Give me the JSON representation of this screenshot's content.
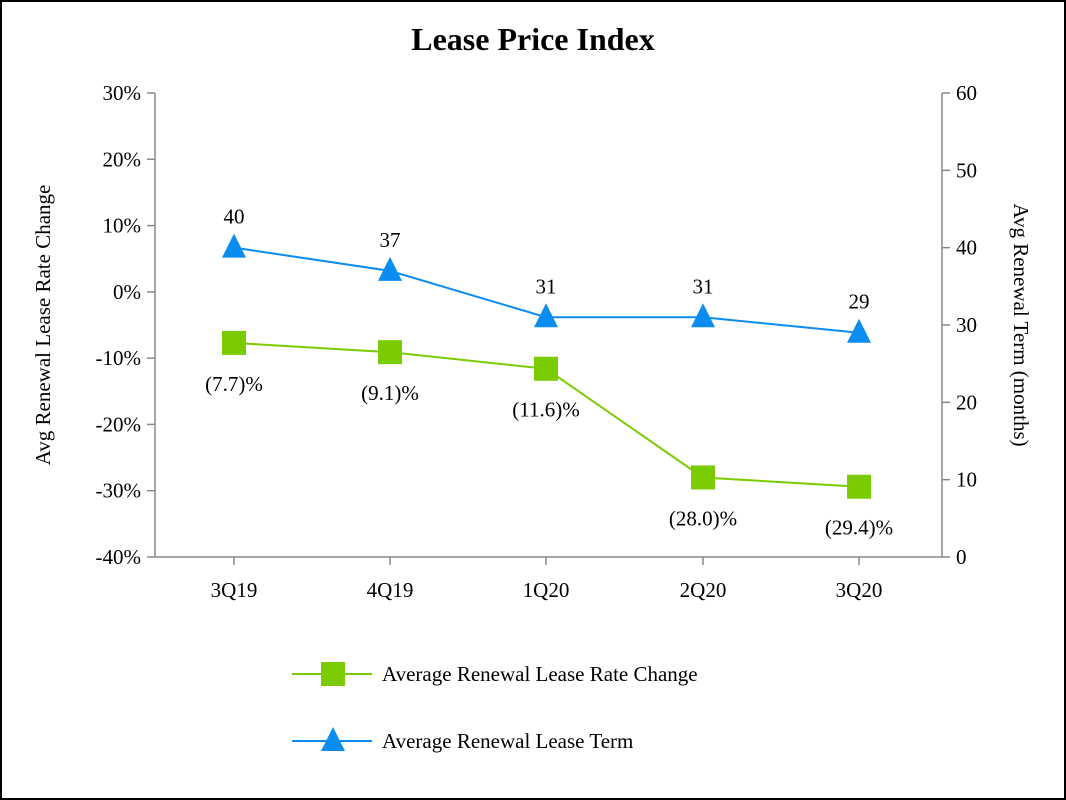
{
  "chart_data": {
    "type": "line",
    "title": "Lease Price Index",
    "categories": [
      "3Q19",
      "4Q19",
      "1Q20",
      "2Q20",
      "3Q20"
    ],
    "y_left": {
      "label": "Avg Renewal Lease Rate Change",
      "range": [
        -40,
        30
      ],
      "step": 10,
      "tick_labels": [
        "-40%",
        "-30%",
        "-20%",
        "-10%",
        "0%",
        "10%",
        "20%",
        "30%"
      ]
    },
    "y_right": {
      "label": "Avg Renewal Term (months)",
      "range": [
        0,
        60
      ],
      "step": 10,
      "tick_labels": [
        "0",
        "10",
        "20",
        "30",
        "40",
        "50",
        "60"
      ]
    },
    "series": [
      {
        "name": "Average Renewal Lease Rate Change",
        "axis": "left",
        "marker": "square",
        "color": "#7ACC00",
        "values": [
          -7.7,
          -9.1,
          -11.6,
          -28.0,
          -29.4
        ],
        "labels": [
          "(7.7)%",
          "(9.1)%",
          "(11.6)%",
          "(28.0)%",
          "(29.4)%"
        ]
      },
      {
        "name": "Average Renewal Lease Term",
        "axis": "right",
        "marker": "triangle",
        "color": "#0A8CF0",
        "values": [
          40,
          37,
          31,
          31,
          29
        ],
        "labels": [
          "40",
          "37",
          "31",
          "31",
          "29"
        ]
      }
    ],
    "grid": false,
    "legend_placement": "bottom"
  }
}
